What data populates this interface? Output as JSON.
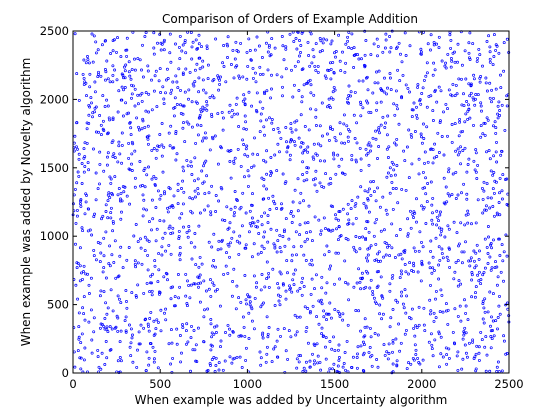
{
  "chart_data": {
    "type": "scatter",
    "title": "Comparison of Orders of Example Addition",
    "xlabel": "When example was added by Uncertainty algorithm",
    "ylabel": "When example was added by Novelty algorithm",
    "xlim": [
      0,
      2500
    ],
    "ylim": [
      0,
      2500
    ],
    "xticks": [
      "0",
      "500",
      "1000",
      "1500",
      "2000",
      "2500"
    ],
    "yticks": [
      "0",
      "500",
      "1000",
      "1500",
      "2000",
      "2500"
    ],
    "grid": false,
    "legend": "none",
    "marker": "point",
    "marker_color": "#0000ff",
    "n_points": 2500,
    "distribution": "approximately uniform over [0,2500] x [0,2500]",
    "series": [
      {
        "x_values": [
          12,
          45,
          88,
          130,
          160,
          210,
          260,
          300,
          340,
          390,
          420,
          470,
          520,
          560,
          610,
          650,
          700,
          745,
          790,
          840,
          880,
          930,
          970,
          1020,
          1060,
          1110,
          1150,
          1200,
          1240,
          1290,
          1330,
          1380,
          1420,
          1470,
          1510,
          1560,
          1600,
          1650,
          1690,
          1740,
          1780,
          1830,
          1870,
          1920,
          1960,
          2010,
          2050,
          2100,
          2140,
          2190,
          2230,
          2280,
          2320,
          2370,
          2410,
          2460,
          2490
        ],
        "y_values": [
          2480,
          30,
          1200,
          2420,
          600,
          1850,
          90,
          2210,
          1480,
          350,
          2050,
          780,
          1650,
          1020,
          2380,
          210,
          1330,
          1920,
          560,
          2140,
          880,
          1570,
          40,
          2290,
          1110,
          690,
          1780,
          2460,
          310,
          1420,
          960,
          2030,
          520,
          1700,
          2350,
          150,
          1260,
          1880,
          730,
          2200,
          430,
          1540,
          2410,
          1000,
          270,
          1820,
          640,
          2090,
          1360,
          470,
          1960,
          820,
          2300,
          1190,
          380,
          1620,
          2440
        ]
      }
    ]
  }
}
